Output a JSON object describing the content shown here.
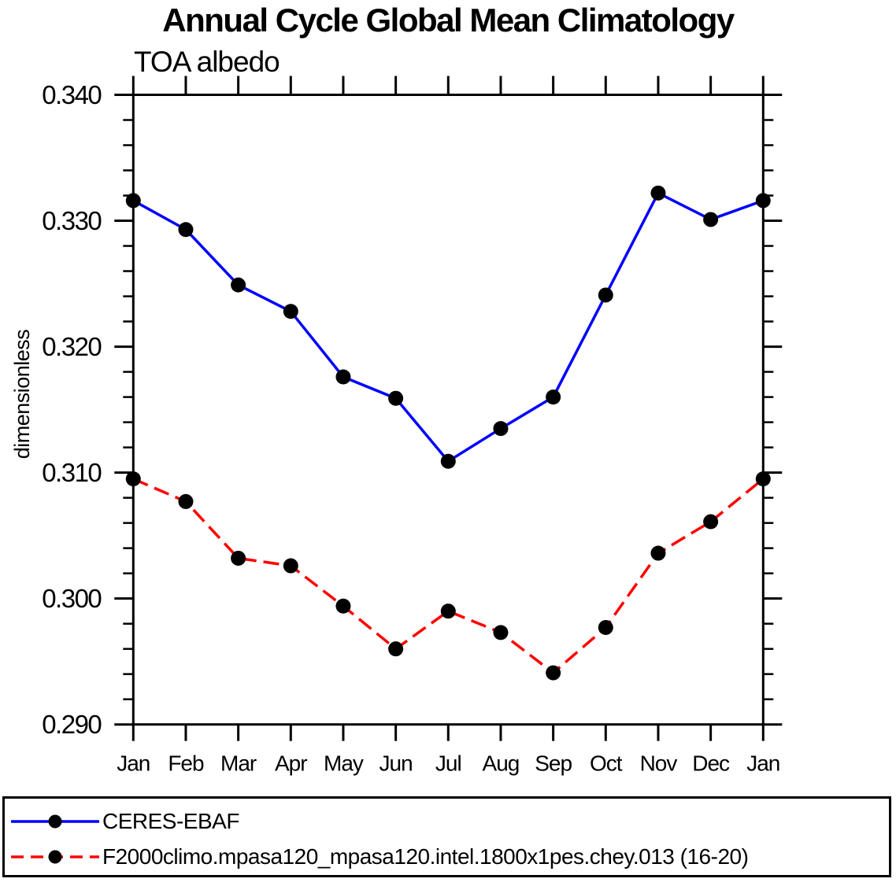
{
  "chart_data": {
    "type": "line",
    "title": "Annual Cycle Global Mean Climatology",
    "subtitle": "TOA albedo",
    "xlabel": "",
    "ylabel": "dimensionless",
    "categories": [
      "Jan",
      "Feb",
      "Mar",
      "Apr",
      "May",
      "Jun",
      "Jul",
      "Aug",
      "Sep",
      "Oct",
      "Nov",
      "Dec",
      "Jan"
    ],
    "series": [
      {
        "name": "CERES-EBAF",
        "color": "#0000ff",
        "line_style": "solid",
        "marker": "filled-circle",
        "marker_color": "#000000",
        "values": [
          0.3316,
          0.3293,
          0.3249,
          0.3228,
          0.3176,
          0.3159,
          0.3109,
          0.3135,
          0.316,
          0.3241,
          0.3322,
          0.3301,
          0.3316
        ]
      },
      {
        "name": "F2000climo.mpasa120_mpasa120.intel.1800x1pes.chey.013 (16-20)",
        "color": "#ff0000",
        "line_style": "dashed",
        "marker": "filled-circle",
        "marker_color": "#000000",
        "values": [
          0.3095,
          0.3077,
          0.3032,
          0.3026,
          0.2994,
          0.296,
          0.299,
          0.2973,
          0.2941,
          0.2977,
          0.3036,
          0.3061,
          0.3095
        ]
      }
    ],
    "ylim": [
      0.29,
      0.34
    ],
    "yticks": [
      "0.290",
      "0.300",
      "0.310",
      "0.320",
      "0.330",
      "0.340"
    ],
    "y_minor_step": 0.002,
    "grid": false,
    "legend_position": "bottom box",
    "axis_color": "#000000",
    "background_color": "#ffffff"
  }
}
